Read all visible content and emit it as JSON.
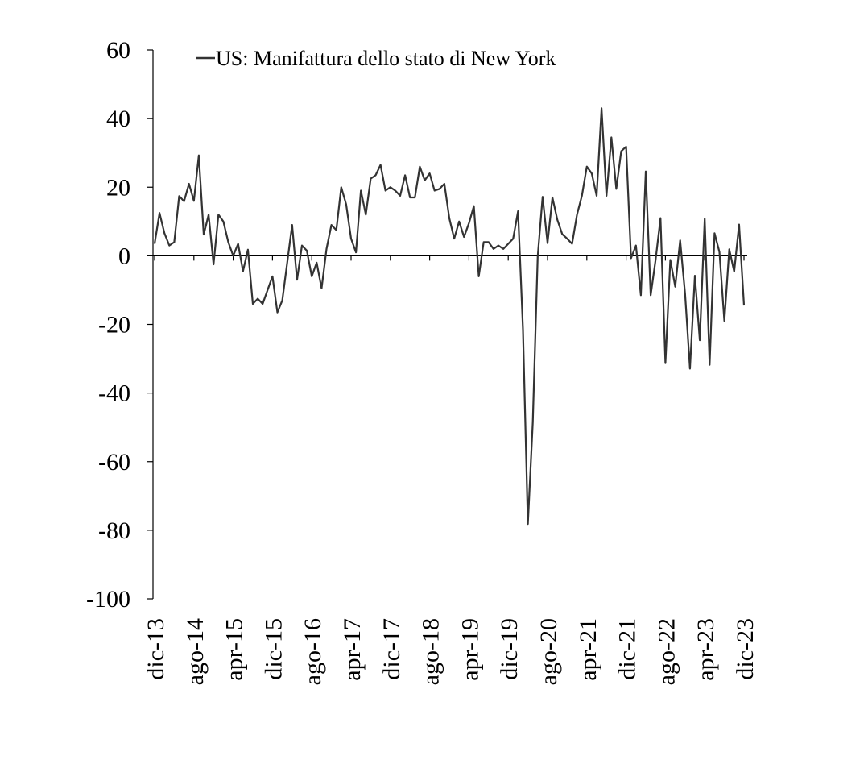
{
  "chart_data": {
    "type": "line",
    "title": "",
    "xlabel": "",
    "ylabel": "",
    "ylim": [
      -100,
      60
    ],
    "yticks": [
      60,
      40,
      20,
      0,
      -20,
      -40,
      -60,
      -80,
      -100
    ],
    "xticks": [
      "dic-13",
      "ago-14",
      "apr-15",
      "dic-15",
      "ago-16",
      "apr-17",
      "dic-17",
      "ago-18",
      "apr-19",
      "dic-19",
      "ago-20",
      "apr-21",
      "dic-21",
      "ago-22",
      "apr-23",
      "dic-23"
    ],
    "grid": false,
    "legend": "top-left",
    "x_start": "dic-13",
    "x_end": "dic-23",
    "series": [
      {
        "name": "US: Manifattura dello stato di New York",
        "color": "#333333",
        "values": [
          3.5,
          12.5,
          6.6,
          3.0,
          4.0,
          17.4,
          15.9,
          21.0,
          16.0,
          29.3,
          6.2,
          12.0,
          -2.5,
          12.0,
          10.0,
          4.0,
          0.0,
          3.5,
          -4.5,
          1.8,
          -14.0,
          -12.5,
          -14.0,
          -10.0,
          -6.0,
          -16.5,
          -13.0,
          -2.0,
          9.0,
          -7.0,
          3.0,
          1.5,
          -6.0,
          -2.0,
          -9.5,
          2.0,
          9.0,
          7.5,
          20.0,
          15.0,
          5.0,
          1.0,
          19.0,
          12.0,
          22.5,
          23.5,
          26.5,
          19.0,
          20.0,
          19.0,
          17.5,
          23.5,
          17.0,
          17.0,
          26.0,
          22.0,
          24.0,
          19.0,
          19.5,
          21.0,
          11.0,
          5.0,
          10.0,
          5.5,
          9.5,
          14.5,
          -6.0,
          4.0,
          4.0,
          2.0,
          3.0,
          2.0,
          3.5,
          5.0,
          13.0,
          -21.5,
          -78.2,
          -48.5,
          -0.2,
          17.2,
          3.7,
          17.0,
          10.5,
          6.3,
          5.0,
          3.5,
          12.0,
          17.5,
          26.0,
          24.0,
          17.5,
          43.0,
          17.5,
          34.5,
          19.5,
          30.5,
          31.8,
          -0.7,
          3.0,
          -11.5,
          24.6,
          -11.5,
          -1.2,
          11.0,
          -31.3,
          -1.2,
          -9.0,
          4.5,
          -11.0,
          -32.9,
          -5.8,
          -24.6,
          10.8,
          -31.8,
          6.6,
          1.1,
          -19.0,
          1.9,
          -4.6,
          9.1,
          -14.5
        ]
      }
    ]
  }
}
